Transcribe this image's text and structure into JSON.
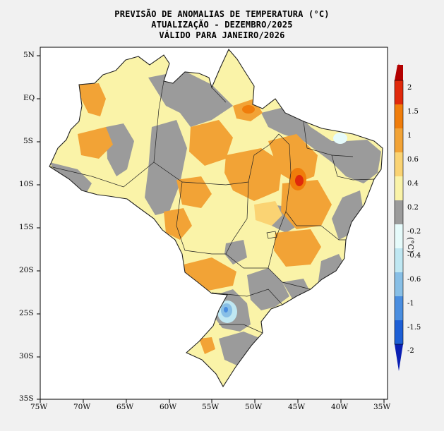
{
  "titles": {
    "line1": "PREVISÃO DE ANOMALIAS DE TEMPERATURA (°C)",
    "line2": "ATUALIZAÇÃO - DEZEMBRO/2025",
    "line3": "VÁLIDO PARA JANEIRO/2026"
  },
  "map": {
    "lat_labels": [
      "5N",
      "EQ",
      "5S",
      "10S",
      "15S",
      "20S",
      "25S",
      "30S",
      "35S"
    ],
    "lon_labels": [
      "75W",
      "70W",
      "65W",
      "60W",
      "55W",
      "50W",
      "45W",
      "40W",
      "35W"
    ],
    "lat_range": [
      5,
      -35
    ],
    "lon_range": [
      -75,
      -35
    ]
  },
  "colorbar": {
    "unit": "(°C)",
    "labels": [
      "2",
      "1.5",
      "1",
      "0.6",
      "0.4",
      "0.2",
      "-0.2",
      "-0.4",
      "-0.6",
      "-1",
      "-1.5",
      "-2"
    ],
    "colors": [
      "#b30000",
      "#e0290b",
      "#f07d0b",
      "#f2a336",
      "#fad373",
      "#faf3a8",
      "#9b9b9b",
      "#e6fbfb",
      "#bfe7f2",
      "#88bfe6",
      "#4a8ee0",
      "#1d5fd6",
      "#0a1fb3"
    ]
  }
}
